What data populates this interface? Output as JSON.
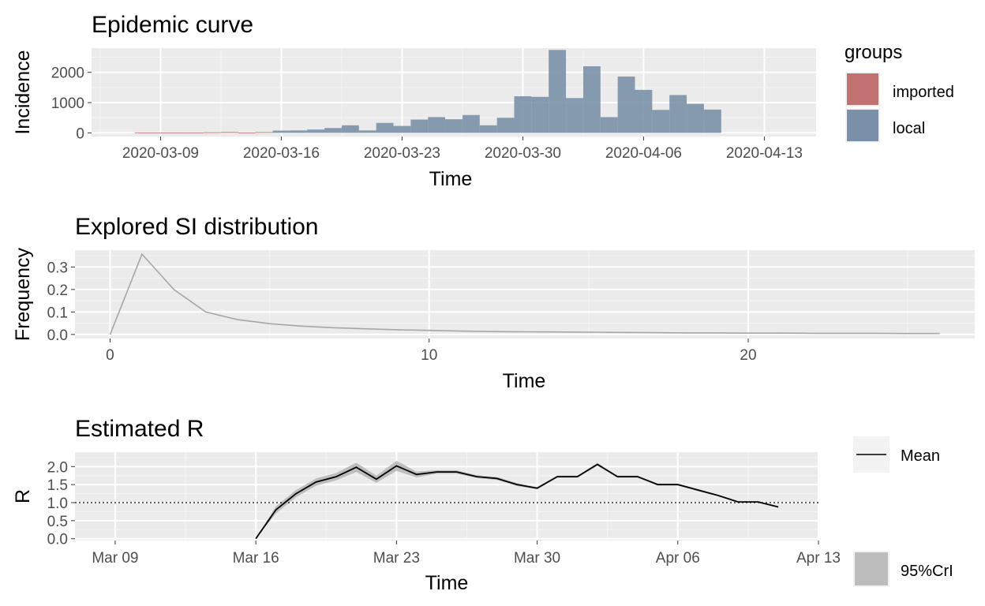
{
  "chart_data": [
    {
      "type": "bar",
      "title": "Epidemic curve",
      "xlabel": "Time",
      "ylabel": "Incidence",
      "legend": {
        "title": "groups",
        "placement": "right",
        "entries": [
          {
            "label": "imported",
            "color": "#c07170"
          },
          {
            "label": "local",
            "color": "#7a90a8"
          }
        ]
      },
      "x_type": "date",
      "x_ticks": [
        "2020-03-09",
        "2020-03-16",
        "2020-03-23",
        "2020-03-30",
        "2020-04-06",
        "2020-04-13"
      ],
      "x_tick_labels": [
        "2020-03-09",
        "2020-03-16",
        "2020-03-23",
        "2020-03-30",
        "2020-04-06",
        "2020-04-13"
      ],
      "xlim": [
        "2020-03-05",
        "2020-04-16"
      ],
      "y_ticks": [
        0,
        1000,
        2000
      ],
      "ylim": [
        -120,
        2800
      ],
      "grid": true,
      "x": [
        "2020-03-08",
        "2020-03-09",
        "2020-03-10",
        "2020-03-11",
        "2020-03-12",
        "2020-03-13",
        "2020-03-14",
        "2020-03-15",
        "2020-03-16",
        "2020-03-17",
        "2020-03-18",
        "2020-03-19",
        "2020-03-20",
        "2020-03-21",
        "2020-03-22",
        "2020-03-23",
        "2020-03-24",
        "2020-03-25",
        "2020-03-26",
        "2020-03-27",
        "2020-03-28",
        "2020-03-29",
        "2020-03-30",
        "2020-03-31",
        "2020-04-01",
        "2020-04-02",
        "2020-04-03",
        "2020-04-04",
        "2020-04-05",
        "2020-04-06",
        "2020-04-07",
        "2020-04-08",
        "2020-04-09",
        "2020-04-10",
        "2020-04-11",
        "2020-04-12"
      ],
      "series": [
        {
          "name": "imported",
          "color": "#c07170",
          "values": [
            12,
            12,
            12,
            12,
            20,
            28,
            10,
            24,
            0,
            0,
            0,
            0,
            0,
            0,
            0,
            0,
            0,
            0,
            0,
            0,
            0,
            0,
            0,
            0,
            0,
            0,
            0,
            0,
            0,
            0,
            0,
            0,
            0,
            0,
            0,
            0
          ]
        },
        {
          "name": "local",
          "color": "#7a90a8",
          "values": [
            0,
            0,
            0,
            0,
            0,
            0,
            0,
            0,
            75,
            80,
            110,
            160,
            250,
            80,
            330,
            230,
            440,
            520,
            450,
            590,
            250,
            500,
            1210,
            1190,
            2740,
            1150,
            2200,
            520,
            1860,
            1420,
            760,
            1250,
            960,
            770,
            0,
            0
          ]
        }
      ]
    },
    {
      "type": "line",
      "title": "Explored SI distribution",
      "xlabel": "Time",
      "ylabel": "Frequency",
      "x_ticks": [
        0,
        10,
        20
      ],
      "xlim": [
        -1.1,
        27.1
      ],
      "y_ticks": [
        0.0,
        0.1,
        0.2,
        0.3
      ],
      "y_tick_labels": [
        "0.0",
        "0.1",
        "0.2",
        "0.3"
      ],
      "ylim": [
        -0.018,
        0.375
      ],
      "grid": true,
      "color": "#a6a6a6",
      "x": [
        0,
        1,
        2,
        3,
        4,
        5,
        6,
        7,
        8,
        9,
        10,
        11,
        12,
        13,
        14,
        15,
        16,
        17,
        18,
        19,
        20,
        21,
        22,
        23,
        24,
        25,
        26
      ],
      "y": [
        0.0,
        0.357,
        0.2,
        0.1,
        0.066,
        0.048,
        0.037,
        0.03,
        0.025,
        0.021,
        0.018,
        0.015,
        0.013,
        0.012,
        0.011,
        0.01,
        0.009,
        0.008,
        0.007,
        0.007,
        0.006,
        0.006,
        0.005,
        0.005,
        0.005,
        0.004,
        0.004
      ]
    },
    {
      "type": "line",
      "title": "Estimated R",
      "xlabel": "Time",
      "ylabel": "R",
      "x_type": "date",
      "x_ticks": [
        "2020-03-09",
        "2020-03-16",
        "2020-03-23",
        "2020-03-30",
        "2020-04-06",
        "2020-04-13"
      ],
      "x_tick_labels": [
        "Mar 09",
        "Mar 16",
        "Mar 23",
        "Mar 30",
        "Apr 06",
        "Apr 13"
      ],
      "xlim": [
        "2020-03-07",
        "2020-04-13"
      ],
      "y_ticks": [
        0.0,
        0.5,
        1.0,
        1.5,
        2.0
      ],
      "y_tick_labels": [
        "0.0",
        "0.5",
        "1.0",
        "1.5",
        "2.0"
      ],
      "ylim": [
        -0.05,
        2.4
      ],
      "grid": true,
      "reference_line": {
        "y": 1.0,
        "style": "dotted"
      },
      "legend": {
        "placement": "right",
        "entries": [
          {
            "label": "Mean",
            "kind": "line",
            "color": "#000000"
          },
          {
            "label": "95%CrI",
            "kind": "ribbon",
            "color": "#bdbdbd"
          }
        ]
      },
      "x": [
        "2020-03-16",
        "2020-03-17",
        "2020-03-18",
        "2020-03-19",
        "2020-03-20",
        "2020-03-21",
        "2020-03-22",
        "2020-03-23",
        "2020-03-24",
        "2020-03-25",
        "2020-03-26",
        "2020-03-27",
        "2020-03-28",
        "2020-03-29",
        "2020-03-30",
        "2020-03-31",
        "2020-04-01",
        "2020-04-02",
        "2020-04-03",
        "2020-04-04",
        "2020-04-05",
        "2020-04-06",
        "2020-04-07",
        "2020-04-08",
        "2020-04-09",
        "2020-04-10",
        "2020-04-11"
      ],
      "mean": [
        0.0,
        0.8,
        1.25,
        1.57,
        1.72,
        1.98,
        1.65,
        2.02,
        1.78,
        1.85,
        1.85,
        1.72,
        1.67,
        1.5,
        1.4,
        1.72,
        1.72,
        2.06,
        1.72,
        1.72,
        1.5,
        1.5,
        1.35,
        1.2,
        1.02,
        1.02,
        0.88
      ],
      "lower": [
        0.0,
        0.7,
        1.15,
        1.47,
        1.62,
        1.85,
        1.55,
        1.88,
        1.7,
        1.8,
        1.8,
        1.68,
        1.63,
        1.46,
        1.37,
        1.69,
        1.69,
        2.02,
        1.69,
        1.69,
        1.47,
        1.47,
        1.32,
        1.18,
        1.0,
        1.0,
        0.86
      ],
      "upper": [
        0.0,
        0.9,
        1.35,
        1.67,
        1.82,
        2.11,
        1.75,
        2.16,
        1.86,
        1.9,
        1.9,
        1.76,
        1.71,
        1.54,
        1.43,
        1.75,
        1.75,
        2.1,
        1.75,
        1.75,
        1.53,
        1.53,
        1.38,
        1.22,
        1.04,
        1.04,
        0.9
      ]
    }
  ]
}
